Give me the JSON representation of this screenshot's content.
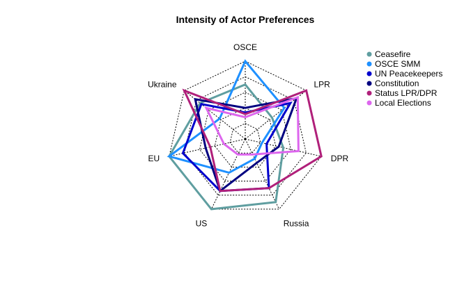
{
  "chart_data": {
    "type": "radar",
    "title": "Intensity of Actor Preferences",
    "axes": [
      "OSCE",
      "LPR",
      "DPR",
      "Russia",
      "US",
      "EU",
      "Ukraine"
    ],
    "rmax": 5,
    "rings": [
      1,
      2,
      3,
      4,
      5
    ],
    "series": [
      {
        "name": "Ceasefire",
        "color": "#5f9ea0",
        "values": [
          3.5,
          2.2,
          2.5,
          4.5,
          5.0,
          5.0,
          3.7
        ]
      },
      {
        "name": "OSCE SMM",
        "color": "#1e90ff",
        "values": [
          5.0,
          3.2,
          1.1,
          1.4,
          2.4,
          5.0,
          2.1
        ]
      },
      {
        "name": "UN Peacekeepers",
        "color": "#0000cd",
        "values": [
          1.7,
          3.7,
          1.4,
          3.5,
          3.7,
          4.1,
          3.6
        ]
      },
      {
        "name": "Constitution",
        "color": "#000080",
        "values": [
          2.0,
          4.2,
          2.2,
          1.7,
          3.7,
          2.6,
          4.1
        ]
      },
      {
        "name": "Status LPR/DPR",
        "color": "#b0207a",
        "values": [
          1.6,
          5.0,
          5.0,
          3.5,
          3.7,
          2.3,
          5.0
        ]
      },
      {
        "name": "Local Elections",
        "color": "#dd66ee",
        "values": [
          1.4,
          4.3,
          3.5,
          1.1,
          1.1,
          1.4,
          3.2
        ]
      }
    ],
    "legend_position": "top-right"
  }
}
